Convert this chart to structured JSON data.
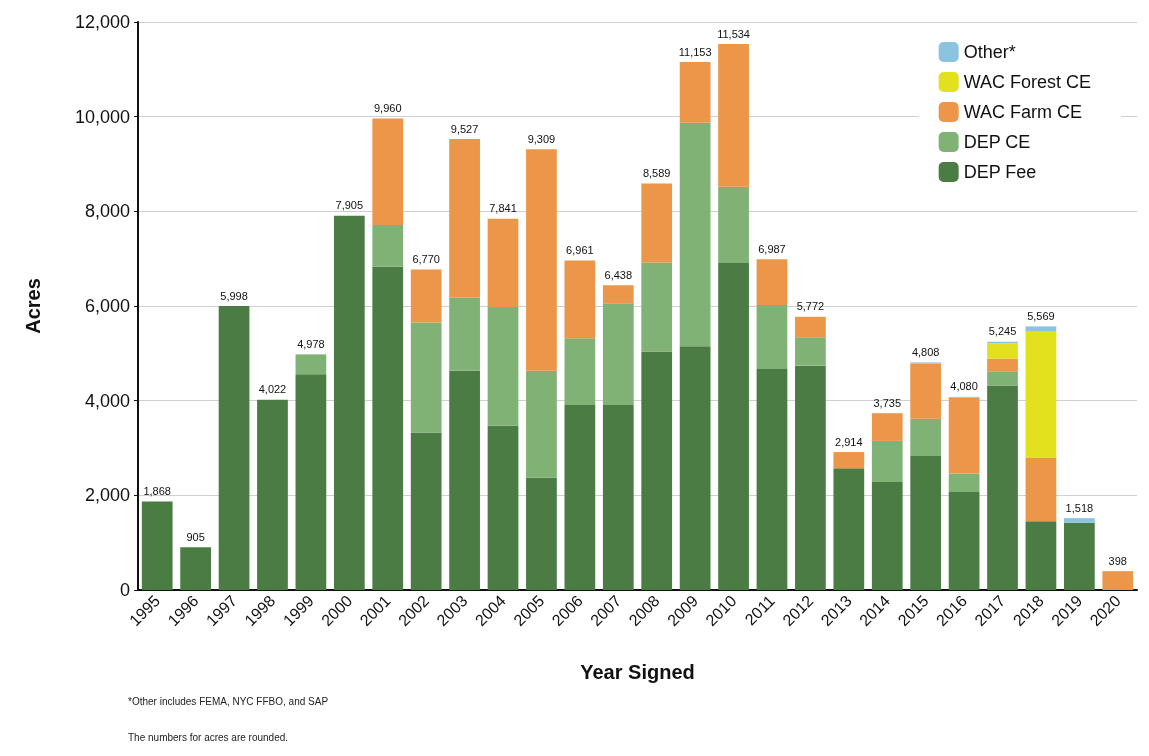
{
  "chart_data": {
    "type": "bar",
    "stacked": true,
    "xlabel": "Year Signed",
    "ylabel": "Acres",
    "categories": [
      "1995",
      "1996",
      "1997",
      "1998",
      "1999",
      "2000",
      "2001",
      "2002",
      "2003",
      "2004",
      "2005",
      "2006",
      "2007",
      "2008",
      "2009",
      "2010",
      "2011",
      "2012",
      "2013",
      "2014",
      "2015",
      "2016",
      "2017",
      "2018",
      "2019",
      "2020"
    ],
    "series": [
      {
        "name": "DEP Fee",
        "color": "#4a7c44",
        "values": [
          1868,
          905,
          5998,
          4022,
          4560,
          7905,
          6830,
          3330,
          4630,
          3470,
          2370,
          3910,
          3910,
          5040,
          5150,
          6910,
          4670,
          4740,
          2570,
          2280,
          2830,
          2070,
          4320,
          1450,
          1420,
          null
        ]
      },
      {
        "name": "DEP CE",
        "color": "#7fb274",
        "values": [
          null,
          null,
          null,
          null,
          418,
          null,
          880,
          2320,
          1550,
          2510,
          2260,
          1410,
          2150,
          1880,
          4720,
          1610,
          1350,
          600,
          null,
          870,
          790,
          390,
          290,
          null,
          null,
          null
        ]
      },
      {
        "name": "WAC Farm CE",
        "color": "#eb9648",
        "values": [
          null,
          null,
          null,
          null,
          null,
          null,
          2250,
          1120,
          3347,
          1861,
          4679,
          1641,
          378,
          1669,
          1283,
          3014,
          967,
          432,
          344,
          585,
          1160,
          1600,
          280,
          1340,
          null,
          398
        ]
      },
      {
        "name": "WAC Forest CE",
        "color": "#e3e01e",
        "values": [
          null,
          null,
          null,
          null,
          null,
          null,
          null,
          null,
          null,
          null,
          null,
          null,
          null,
          null,
          null,
          null,
          null,
          null,
          null,
          null,
          null,
          null,
          320,
          2680,
          null,
          null
        ]
      },
      {
        "name": "Other*",
        "color": "#8cc3e0",
        "values": [
          null,
          null,
          null,
          null,
          null,
          null,
          null,
          null,
          null,
          null,
          null,
          null,
          null,
          null,
          null,
          null,
          null,
          null,
          null,
          null,
          28,
          20,
          35,
          99,
          98,
          null
        ]
      }
    ],
    "totals": [
      "1,868",
      "905",
      "5,998",
      "4,022",
      "4,978",
      "7,905",
      "9,960",
      "6,770",
      "9,527",
      "7,841",
      "9,309",
      "6,961",
      "6,438",
      "8,589",
      "11,153",
      "11,534",
      "6,987",
      "5,772",
      "2,914",
      "3,735",
      "4,808",
      "4,080",
      "5,245",
      "5,569",
      "1,518",
      "398"
    ],
    "ylim": [
      0,
      12000
    ],
    "yticks": [
      {
        "value": 0,
        "label": "0"
      },
      {
        "value": 2000,
        "label": "2,000"
      },
      {
        "value": 4000,
        "label": "4,000"
      },
      {
        "value": 6000,
        "label": "6,000"
      },
      {
        "value": 8000,
        "label": "8,000"
      },
      {
        "value": 10000,
        "label": "10,000"
      },
      {
        "value": 12000,
        "label": "12,000"
      }
    ],
    "grid": "y",
    "legend": "top right",
    "annotations": [
      "*Other includes FEMA, NYC FFBO, and SAP",
      "The numbers for acres are rounded."
    ]
  }
}
